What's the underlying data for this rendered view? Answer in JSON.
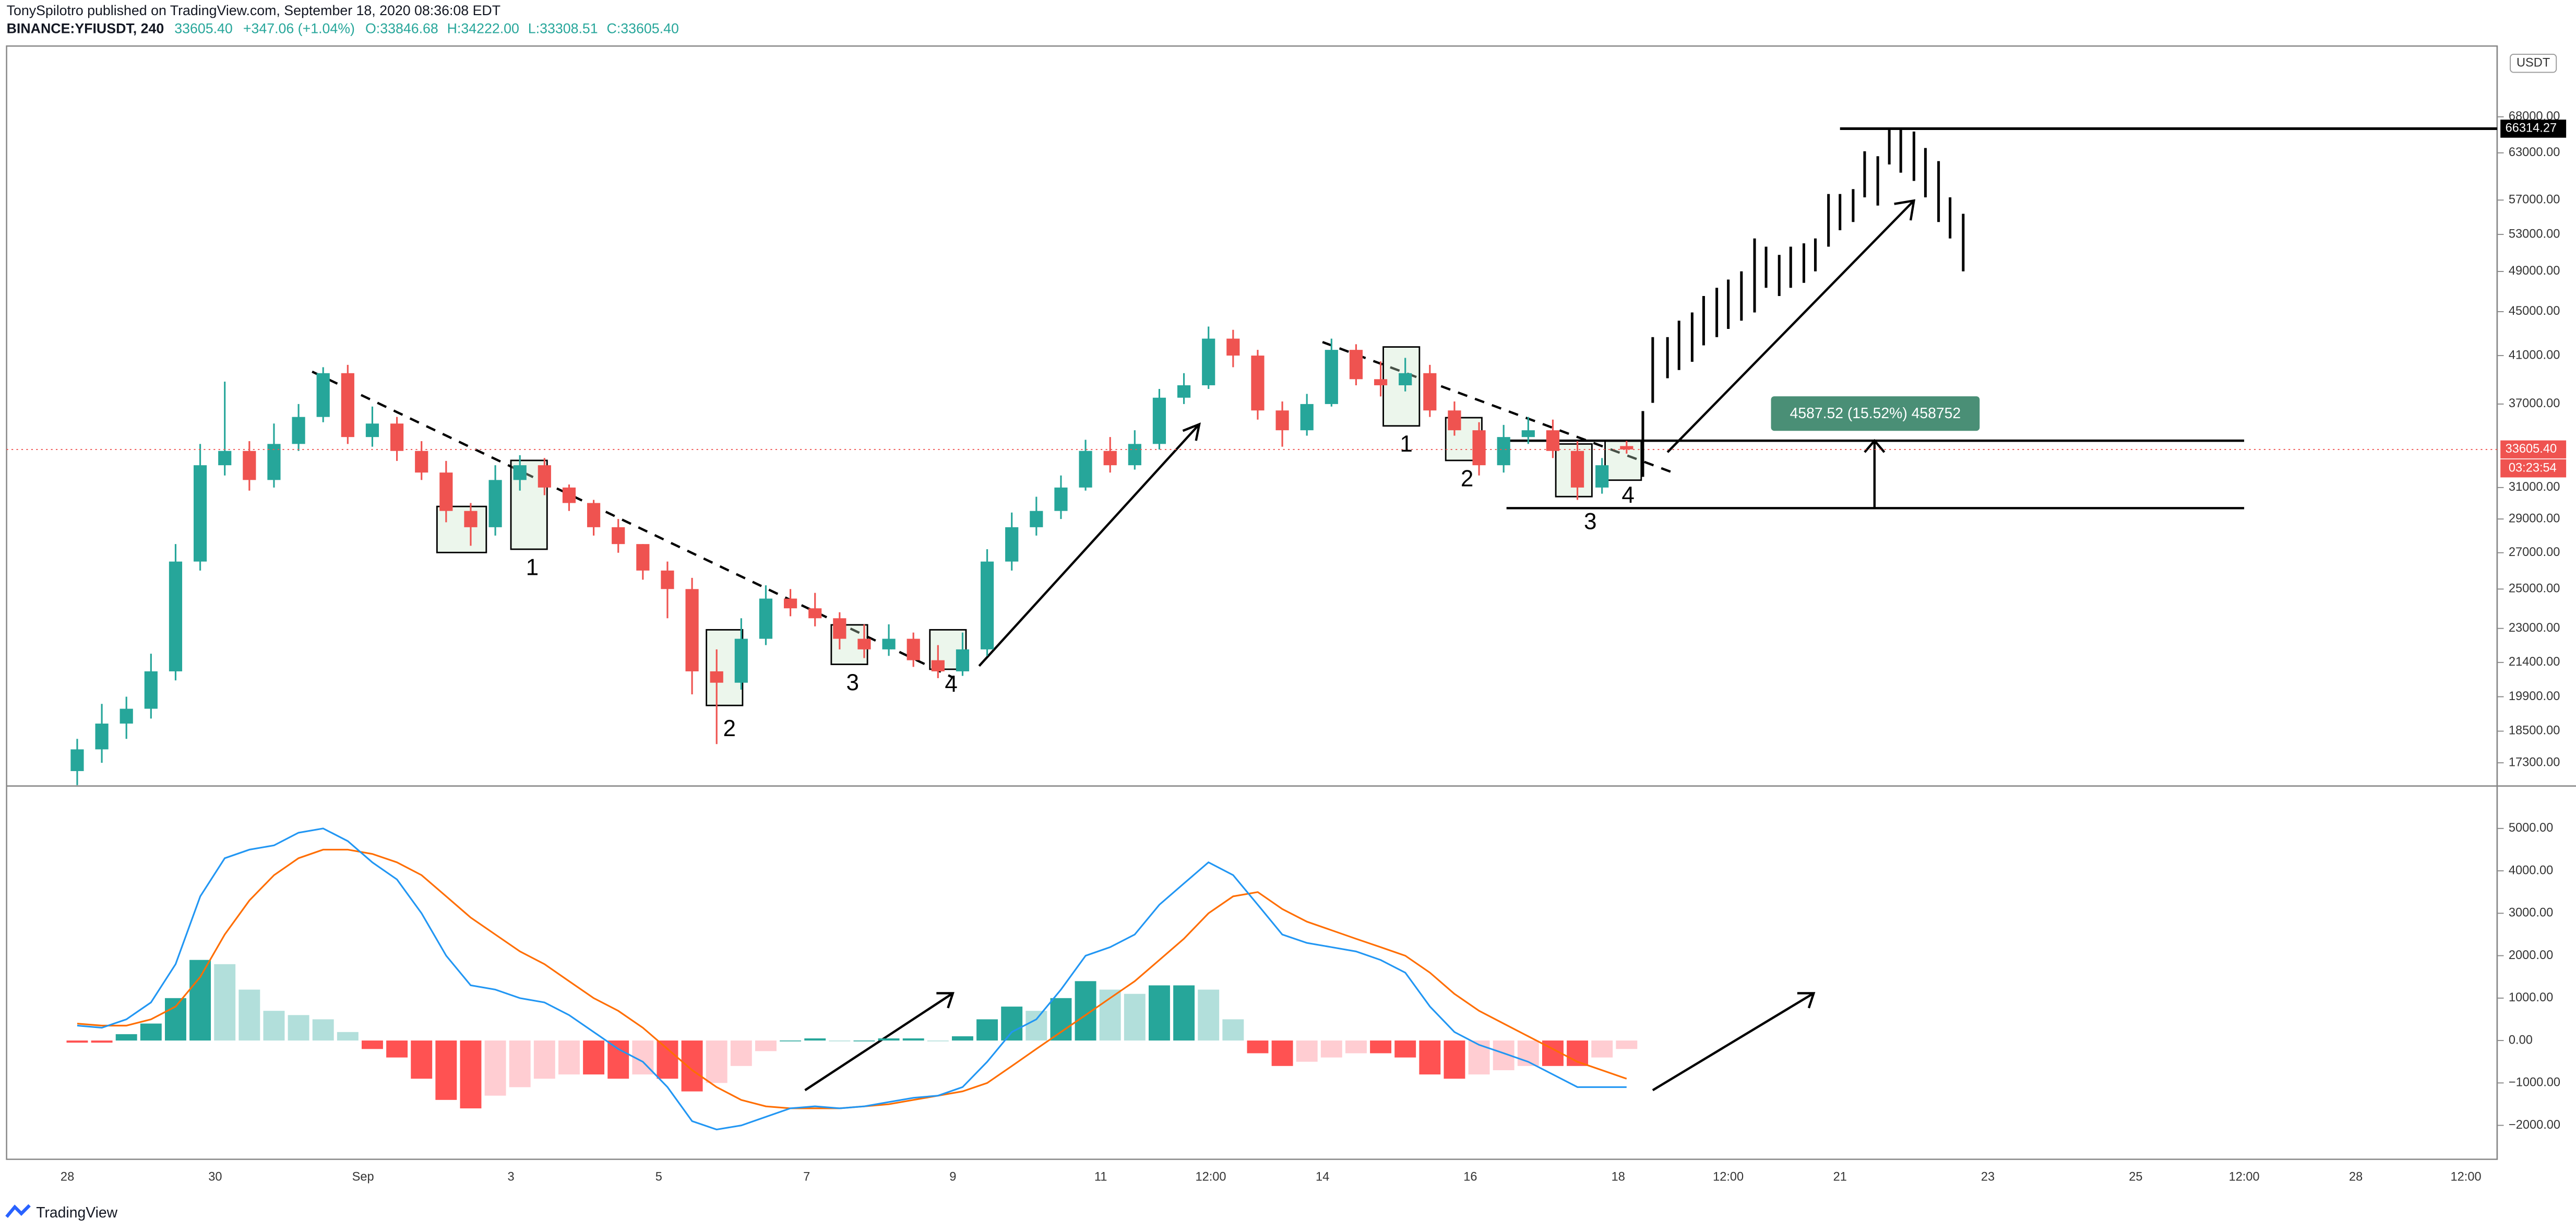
{
  "header": {
    "publisher_line": "TonySpilotro published on TradingView.com, September 18, 2020 08:36:08 EDT",
    "symbol": "BINANCE:YFIUSDT, 240",
    "last": "33605.40",
    "change": "+347.06 (+1.04%)",
    "ohlc": [
      "O:33846.68",
      "H:34222.00",
      "L:33308.51",
      "C:33605.40"
    ]
  },
  "footer": {
    "brand": "TradingView"
  },
  "chart_data": [
    {
      "type": "candlestick",
      "currency": "USDT",
      "log_scale": true,
      "up_color": "#26a69a",
      "down_color": "#ef5350",
      "xtick_labels": [
        "28",
        "30",
        "Sep",
        "3",
        "5",
        "7",
        "9",
        "11",
        "12:00",
        "14",
        "16",
        "18",
        "12:00",
        "21",
        "23",
        "25",
        "12:00",
        "28",
        "12:00"
      ],
      "open": [
        17000,
        17800,
        18800,
        19400,
        21000,
        26500,
        32500,
        33500,
        31500,
        34000,
        36000,
        39500,
        34500,
        35500,
        33500,
        32000,
        29500,
        28500,
        31500,
        32500,
        31000,
        30000,
        28500,
        27500,
        26000,
        25000,
        21000,
        20500,
        22500,
        24500,
        24000,
        23500,
        22500,
        22000,
        22500,
        21500,
        21000,
        22000,
        26500,
        28500,
        29500,
        31000,
        33500,
        32500,
        34000,
        37500,
        38500,
        42500,
        41000,
        36500,
        35000,
        37000,
        41500,
        39000,
        38500,
        39500,
        36500,
        35000,
        32500,
        34500,
        35000,
        33500,
        31000,
        33846.68
      ],
      "high": [
        18200,
        19600,
        19900,
        21800,
        27500,
        34000,
        38800,
        34200,
        35500,
        37000,
        40000,
        40200,
        36800,
        36000,
        34200,
        32800,
        30000,
        32500,
        33200,
        33000,
        31200,
        30200,
        29000,
        27500,
        26500,
        25600,
        22000,
        23500,
        25200,
        25000,
        24800,
        23800,
        23200,
        23200,
        22800,
        22200,
        22800,
        27200,
        29400,
        30400,
        31800,
        34300,
        34500,
        35000,
        38200,
        39500,
        43600,
        43300,
        41500,
        37200,
        37800,
        42500,
        42000,
        40500,
        40800,
        40200,
        37200,
        35600,
        35400,
        36000,
        35800,
        34200,
        33000,
        34222
      ],
      "low": [
        16500,
        17300,
        18200,
        19000,
        20600,
        26000,
        31800,
        30800,
        31000,
        33500,
        35600,
        34000,
        33800,
        32800,
        31500,
        28800,
        27400,
        28000,
        30800,
        30500,
        29500,
        28000,
        27000,
        25500,
        23500,
        20000,
        18000,
        20200,
        22200,
        23600,
        23100,
        22000,
        21600,
        21700,
        21200,
        20700,
        20800,
        21700,
        26000,
        28000,
        29000,
        30800,
        32000,
        32200,
        33600,
        37000,
        38200,
        40000,
        35800,
        33800,
        34600,
        36800,
        38500,
        37600,
        38000,
        36000,
        34600,
        31800,
        32000,
        34000,
        33000,
        30200,
        30600,
        33308.51
      ],
      "close": [
        17800,
        18800,
        19400,
        21000,
        26500,
        32500,
        33500,
        31500,
        34000,
        36000,
        39500,
        34500,
        35500,
        33500,
        32000,
        29500,
        28500,
        31500,
        32500,
        31000,
        30000,
        28500,
        27500,
        26000,
        25000,
        21000,
        20500,
        22500,
        24500,
        24000,
        23500,
        22500,
        22000,
        22500,
        21500,
        21000,
        22000,
        26500,
        28500,
        29500,
        31000,
        33500,
        32500,
        34000,
        37500,
        38500,
        42500,
        41000,
        36500,
        35000,
        37000,
        41500,
        39000,
        38500,
        39500,
        36500,
        35000,
        32500,
        34500,
        35000,
        33500,
        31000,
        32500,
        33605.4
      ],
      "ylim": [
        16470,
        79000
      ],
      "yticks": [
        {
          "value": 17300,
          "label": "17300.00"
        },
        {
          "value": 18500,
          "label": "18500.00"
        },
        {
          "value": 19900,
          "label": "19900.00"
        },
        {
          "value": 21400,
          "label": "21400.00"
        },
        {
          "value": 23000,
          "label": "23000.00"
        },
        {
          "value": 25000,
          "label": "25000.00"
        },
        {
          "value": 27000,
          "label": "27000.00"
        },
        {
          "value": 29000,
          "label": "29000.00"
        },
        {
          "value": 31000,
          "label": "31000.00"
        },
        {
          "value": 37000,
          "label": "37000.00"
        },
        {
          "value": 41000,
          "label": "41000.00"
        },
        {
          "value": 45000,
          "label": "45000.00"
        },
        {
          "value": 49000,
          "label": "49000.00"
        },
        {
          "value": 53000,
          "label": "53000.00"
        },
        {
          "value": 57000,
          "label": "57000.00"
        },
        {
          "value": 63000,
          "label": "63000.00"
        },
        {
          "value": 68000,
          "label": "68000.00"
        }
      ],
      "last_price": {
        "value": 33605.4,
        "label": "33605.40"
      },
      "countdown": "03:23:54",
      "target_level": 66314.27,
      "measure_label": "4587.52 (15.52%) 458752",
      "annotations": [
        "1",
        "2",
        "3",
        "4",
        "1",
        "2",
        "3",
        "4"
      ]
    },
    {
      "type": "macd",
      "macd_color": "#2196f3",
      "signal_color": "#ff6d00",
      "histogram_colors": [
        "#26a69a",
        "#b2dfdb",
        "#ff5252",
        "#ffcdd2"
      ],
      "macd": [
        350,
        300,
        500,
        900,
        1800,
        3400,
        4300,
        4500,
        4600,
        4900,
        5000,
        4700,
        4200,
        3800,
        3000,
        2000,
        1300,
        1200,
        1000,
        900,
        600,
        200,
        -200,
        -500,
        -1100,
        -1900,
        -2100,
        -2000,
        -1800,
        -1600,
        -1550,
        -1600,
        -1550,
        -1450,
        -1350,
        -1300,
        -1100,
        -500,
        200,
        500,
        1200,
        2000,
        2200,
        2500,
        3200,
        3700,
        4200,
        3900,
        3200,
        2500,
        2300,
        2200,
        2100,
        1900,
        1600,
        800,
        200,
        -100,
        -300,
        -500,
        -800,
        -1100,
        -1100,
        -1100
      ],
      "signal": [
        400,
        350,
        350,
        500,
        800,
        1500,
        2500,
        3300,
        3900,
        4300,
        4500,
        4500,
        4400,
        4200,
        3900,
        3400,
        2900,
        2500,
        2100,
        1800,
        1400,
        1000,
        700,
        300,
        -200,
        -700,
        -1100,
        -1400,
        -1550,
        -1600,
        -1600,
        -1600,
        -1550,
        -1500,
        -1400,
        -1300,
        -1200,
        -1000,
        -600,
        -200,
        200,
        600,
        1000,
        1400,
        1900,
        2400,
        3000,
        3400,
        3500,
        3100,
        2800,
        2600,
        2400,
        2200,
        2000,
        1600,
        1100,
        700,
        400,
        100,
        -200,
        -500,
        -700,
        -900
      ],
      "histogram": [
        -50,
        -50,
        150,
        400,
        1000,
        1900,
        1800,
        1200,
        700,
        600,
        500,
        200,
        -200,
        -400,
        -900,
        -1400,
        -1600,
        -1300,
        -1100,
        -900,
        -800,
        -800,
        -900,
        -800,
        -900,
        -1200,
        -1000,
        -600,
        -250,
        0,
        50,
        0,
        0,
        50,
        50,
        0,
        100,
        500,
        800,
        700,
        1000,
        1400,
        1200,
        1100,
        1300,
        1300,
        1200,
        500,
        -300,
        -600,
        -500,
        -400,
        -300,
        -300,
        -400,
        -800,
        -900,
        -800,
        -700,
        -600,
        -600,
        -600,
        -400,
        -200
      ],
      "ylim": [
        -2800,
        6000
      ],
      "yticks": [
        {
          "value": 5000,
          "label": "5000.00"
        },
        {
          "value": 4000,
          "label": "4000.00"
        },
        {
          "value": 3000,
          "label": "3000.00"
        },
        {
          "value": 2000,
          "label": "2000.00"
        },
        {
          "value": 1000,
          "label": "1000.00"
        },
        {
          "value": 0,
          "label": "0.00"
        },
        {
          "value": -1000,
          "label": "−1000.00"
        },
        {
          "value": -2000,
          "label": "−2000.00"
        }
      ]
    }
  ]
}
